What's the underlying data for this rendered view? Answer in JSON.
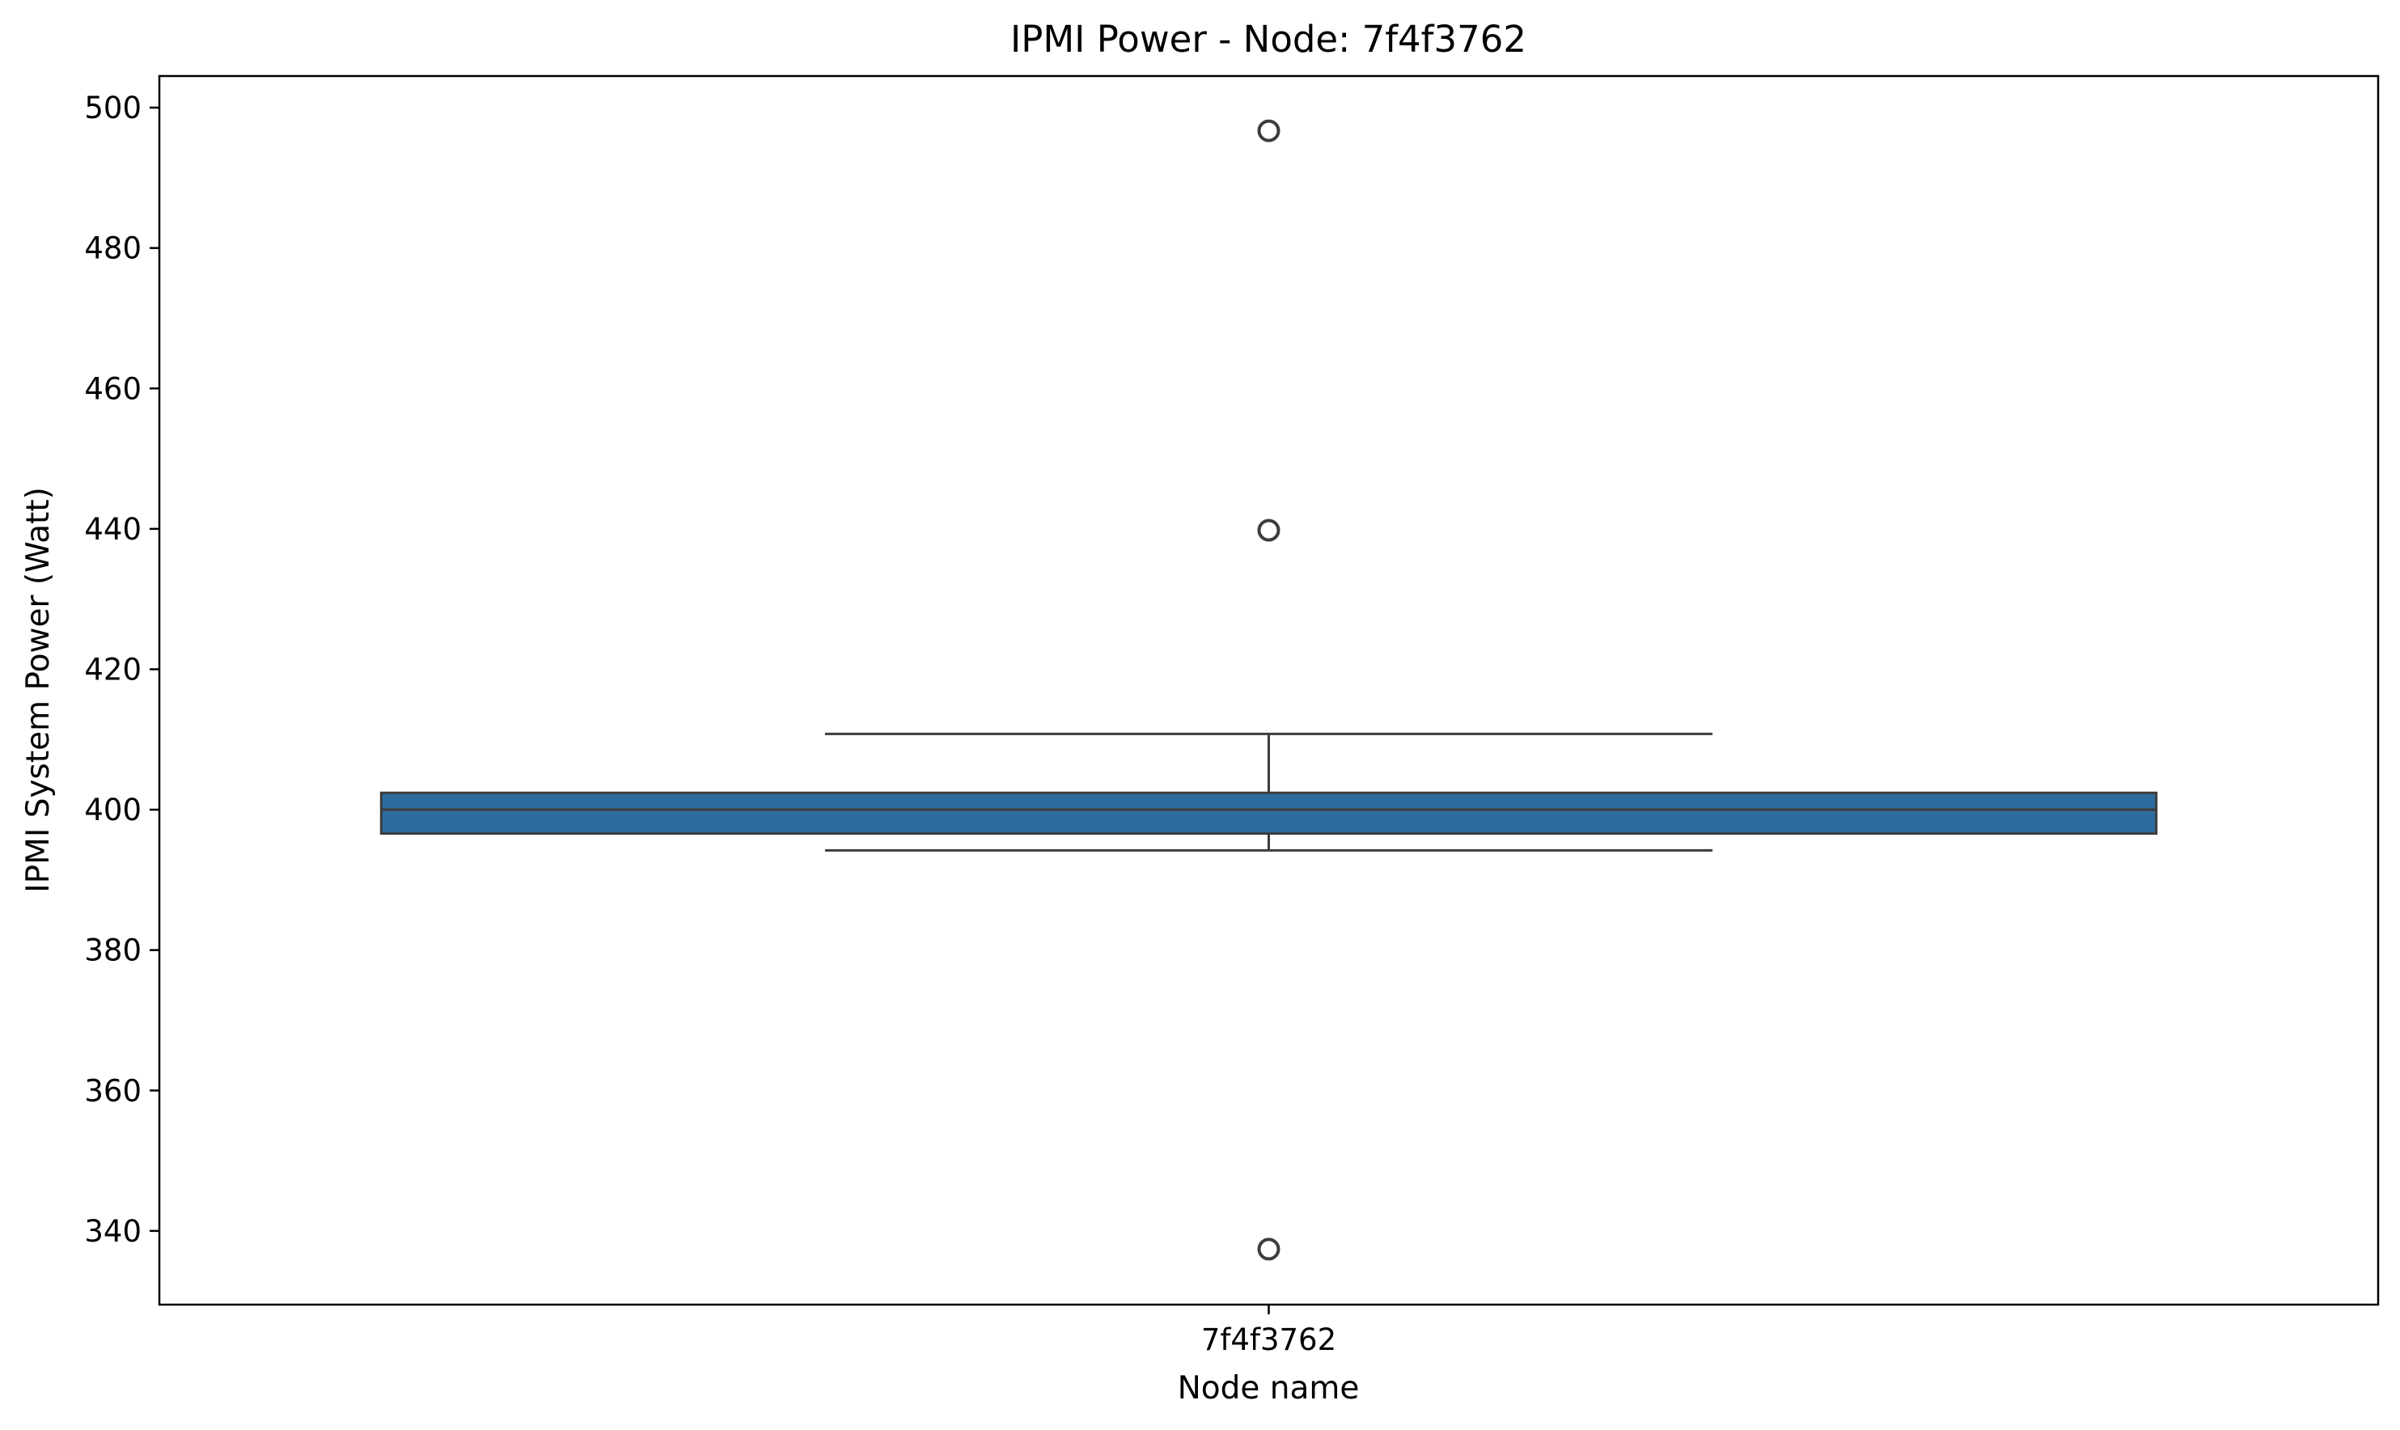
{
  "chart_data": {
    "type": "box",
    "title": "IPMI Power - Node: 7f4f3762",
    "xlabel": "Node name",
    "ylabel": "IPMI System Power (Watt)",
    "categories": [
      "7f4f3762"
    ],
    "ylim": [
      329.5,
      504.5
    ],
    "yticks": [
      340,
      360,
      380,
      400,
      420,
      440,
      460,
      480,
      500
    ],
    "grid": false,
    "box": {
      "category": "7f4f3762",
      "whisker_low": 394.2,
      "q1": 396.6,
      "median": 400.0,
      "q3": 402.4,
      "whisker_high": 410.8,
      "outliers": [
        337.4,
        439.8,
        496.7
      ],
      "color": "#2e6c9e",
      "edge_color": "#3d3d3d"
    }
  }
}
